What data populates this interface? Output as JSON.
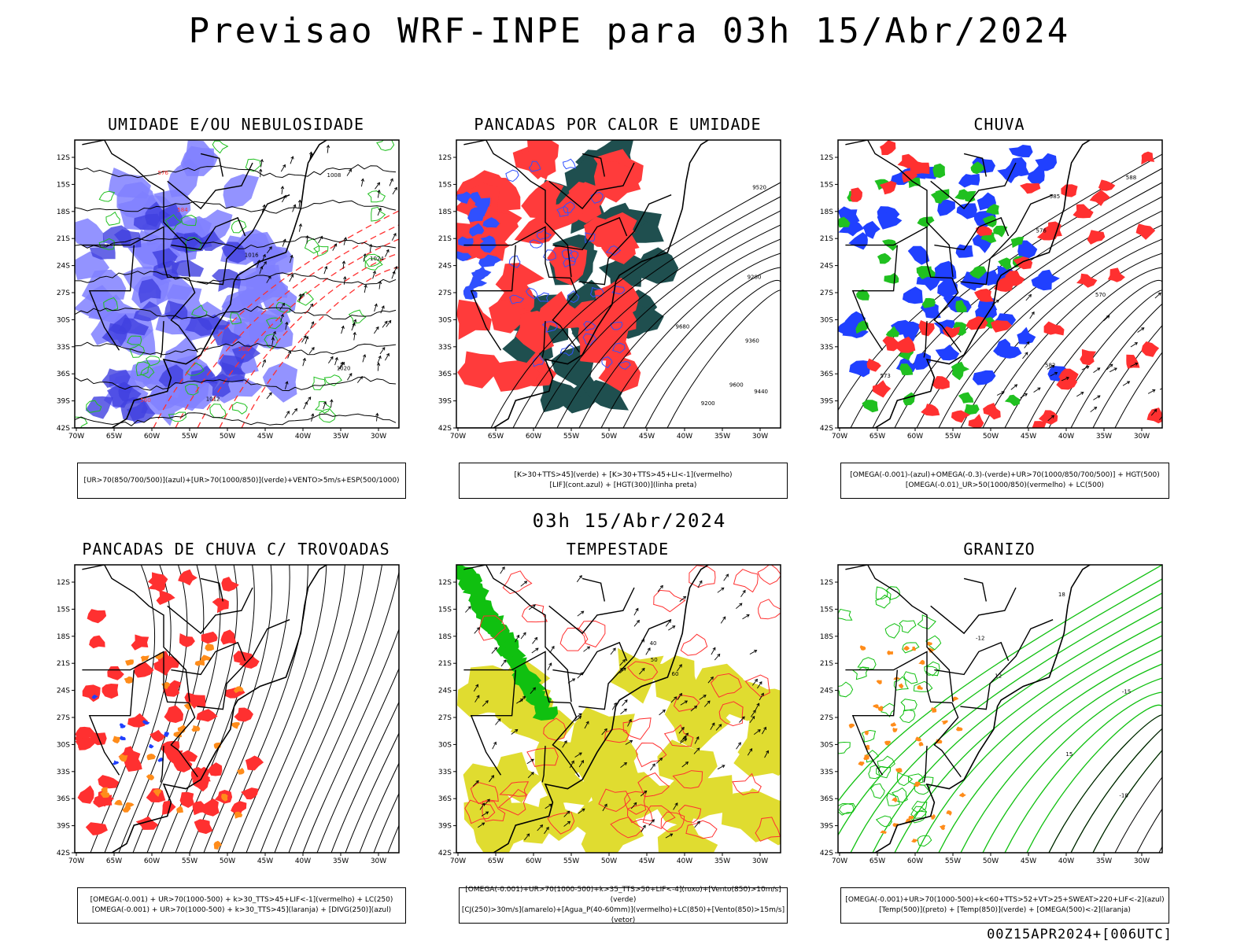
{
  "page": {
    "title": "Previsao WRF-INPE  para 03h 15/Abr/2024",
    "subtitle": "03h 15/Abr/2024",
    "footer": "00Z15APR2024+[006UTC]"
  },
  "axes": {
    "lat_ticks": [
      "12S",
      "15S",
      "18S",
      "21S",
      "24S",
      "27S",
      "30S",
      "33S",
      "36S",
      "39S",
      "42S"
    ],
    "lon_ticks": [
      "70W",
      "65W",
      "60W",
      "55W",
      "50W",
      "45W",
      "40W",
      "35W",
      "30W"
    ]
  },
  "panels": [
    {
      "id": "umidade",
      "title": "UMIDADE E/OU NEBULOSIDADE",
      "legend": [
        "[UR>70(850/700/500)](azul)+[UR>70(1000/850)](verde)+VENTO>5m/s+ESP(500/1000)"
      ],
      "colors": {
        "fill": "#8080ff",
        "fill_dark": "#4040e0",
        "contour": "#20c020",
        "dashed": "#ff3030"
      },
      "labels": [
        "1008",
        "1012",
        "1016",
        "1020",
        "1024",
        "576",
        "568",
        "560",
        "584"
      ]
    },
    {
      "id": "pancadas-calor",
      "title": "PANCADAS POR CALOR E UMIDADE",
      "legend": [
        "[K>30+TTS>45](verde) + [K>30+TTS>45+LI<-1](vermelho)",
        "[LIF](cont.azul) + [HGT(300)](linha preta)"
      ],
      "colors": {
        "fill_red": "#ff3b3b",
        "fill_green": "#1f4f4f",
        "contour": "#3050ff"
      },
      "labels": [
        "9680",
        "9600",
        "9520",
        "9440",
        "9360",
        "9280",
        "9200"
      ]
    },
    {
      "id": "chuva",
      "title": "CHUVA",
      "legend": [
        "[OMEGA(-0.001)-(azul)+OMEGA(-0.3)-(verde)+UR>70(1000/850/700/500)] + HGT(500)",
        "[OMEGA(-0.01)_UR>50(1000/850)(vermelho) + LC(500)"
      ],
      "colors": {
        "blue": "#2040ff",
        "green": "#20c020",
        "red": "#ff3030"
      },
      "labels": [
        "582",
        "585",
        "588",
        "576",
        "570",
        "573"
      ]
    },
    {
      "id": "pancadas-trovoadas",
      "title": "PANCADAS DE CHUVA C/ TROVOADAS",
      "legend": [
        "[OMEGA(-0.001) + UR>70(1000-500) + k>30_TTS>45+LIF<-1](vermelho) + LC(250)",
        "[OMEGA(-0.001) + UR>70(1000-500) + k>30_TTS>45](laranja) + [DIVG(250)](azul)"
      ],
      "colors": {
        "red": "#ff3030",
        "orange": "#ff8c1a",
        "blue": "#2040ff"
      },
      "labels": []
    },
    {
      "id": "tempestade",
      "title": "TEMPESTADE",
      "legend": [
        "[OMEGA(-0.001)+UR>70(1000-500)+k>35_TTS>50+LIF<-4](roxo)+[Vento(850)>10m/s](verde)",
        "[CJ(250)>30m/s](amarelo)+[Agua_P(40-60mm)](vermelho)+LC(850)+[Vento(850)>15m/s](vetor)"
      ],
      "colors": {
        "yellow": "#e0dc30",
        "green": "#10c010",
        "red": "#ff3030"
      },
      "labels": [
        "40",
        "50",
        "60"
      ]
    },
    {
      "id": "granizo",
      "title": "GRANIZO",
      "legend": [
        "[OMEGA(-0.001)+UR>70(1000-500)+k<60+TTS>52+VT>25+SWEAT>220+LIF<-2](azul)",
        "[Temp(500)](preto) + [Temp(850)](verde) + [OMEGA(500)<-2](laranja)"
      ],
      "colors": {
        "green": "#10c010",
        "orange": "#ff8c1a",
        "black": "#000000"
      },
      "labels": [
        "-12",
        "-15",
        "-18",
        "12",
        "15",
        "18"
      ]
    }
  ]
}
